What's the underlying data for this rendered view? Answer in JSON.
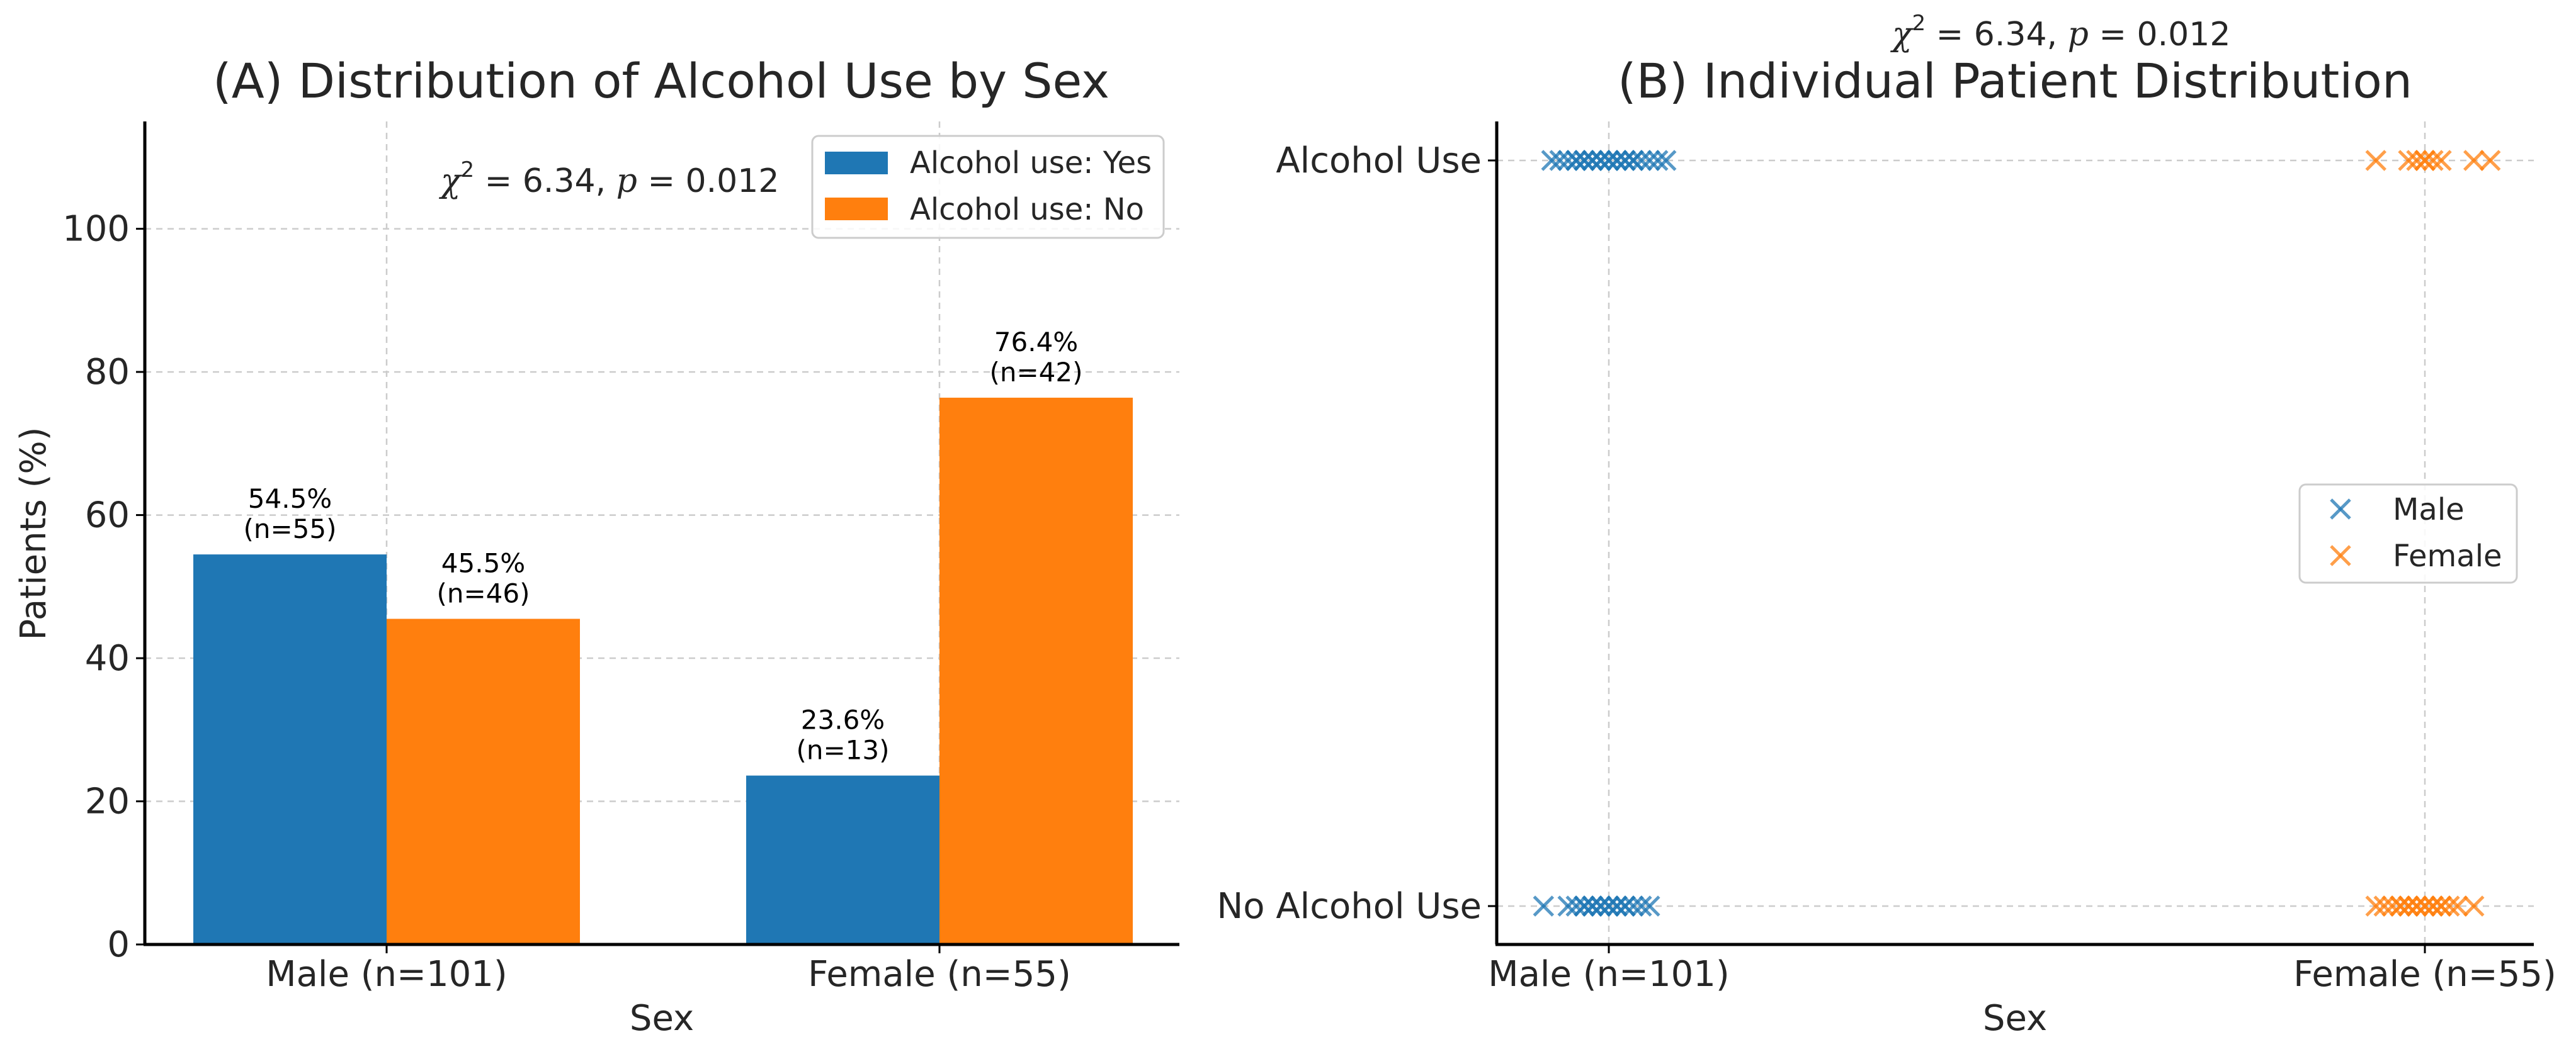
{
  "chart_data": [
    {
      "type": "bar",
      "title": "(A) Distribution of Alcohol Use by Sex",
      "xlabel": "Sex",
      "ylabel": "Patients (%)",
      "categories": [
        "Male (n=101)",
        "Female (n=55)"
      ],
      "ylim": [
        0,
        115
      ],
      "yticks": [
        0,
        20,
        40,
        60,
        80,
        100
      ],
      "grid": true,
      "legend_position": "top-right",
      "series": [
        {
          "name": "Alcohol use: Yes",
          "color": "#1f77b4",
          "values": [
            54.5,
            23.6
          ],
          "labels": [
            "54.5%",
            "23.6%"
          ],
          "counts": [
            "(n=55)",
            "(n=13)"
          ]
        },
        {
          "name": "Alcohol use: No",
          "color": "#ff7f0e",
          "values": [
            45.5,
            76.4
          ],
          "labels": [
            "45.5%",
            "76.4%"
          ],
          "counts": [
            "(n=46)",
            "(n=42)"
          ]
        }
      ],
      "annotation": {
        "stat": "χ",
        "sup": "2",
        "rest": " = 6.34,  ",
        "p": "p",
        "rest2": " = 0.012"
      }
    },
    {
      "type": "scatter",
      "title": "(B) Individual Patient Distribution",
      "xlabel": "Sex",
      "categories": [
        "Male (n=101)",
        "Female (n=55)"
      ],
      "ycategories": [
        "No Alcohol Use",
        "Alcohol Use"
      ],
      "grid": true,
      "legend_position": "center-right",
      "marker": "x",
      "series": [
        {
          "name": "Male",
          "color": "#1f77b4",
          "alcohol_use_x": [
            -0.07,
            -0.06,
            -0.05,
            -0.04,
            -0.04,
            -0.03,
            -0.03,
            -0.02,
            -0.02,
            -0.01,
            -0.01,
            0.0,
            0.0,
            0.01,
            0.01,
            0.02,
            0.02,
            0.03,
            0.03,
            0.04,
            0.05,
            0.06,
            0.07
          ],
          "no_alcohol_x": [
            -0.08,
            -0.05,
            -0.04,
            -0.03,
            -0.03,
            -0.02,
            -0.02,
            -0.01,
            -0.01,
            0.0,
            0.0,
            0.01,
            0.01,
            0.02,
            0.02,
            0.03,
            0.04,
            0.05
          ]
        },
        {
          "name": "Female",
          "color": "#ff7f0e",
          "alcohol_use_x": [
            0.94,
            0.98,
            0.99,
            1.0,
            1.0,
            1.01,
            1.02,
            1.06,
            1.08
          ],
          "no_alcohol_x": [
            0.94,
            0.95,
            0.96,
            0.97,
            0.97,
            0.98,
            0.98,
            0.99,
            0.99,
            1.0,
            1.0,
            1.01,
            1.01,
            1.02,
            1.02,
            1.03,
            1.04,
            1.06
          ]
        }
      ],
      "annotation": {
        "stat": "χ",
        "sup": "2",
        "rest": " = 6.34,  ",
        "p": "p",
        "rest2": " = 0.012"
      }
    }
  ]
}
